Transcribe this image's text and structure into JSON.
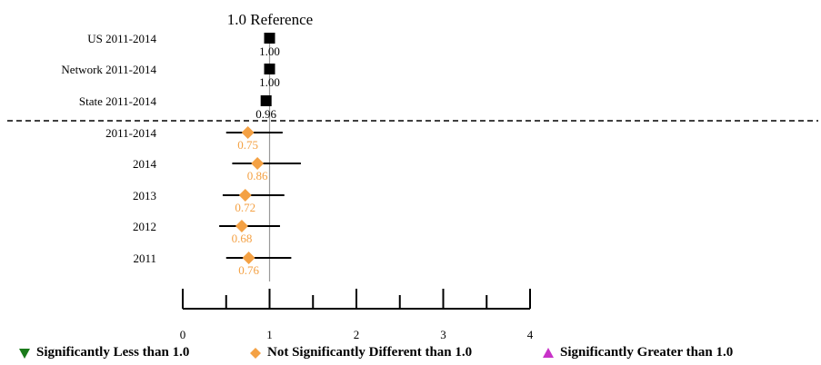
{
  "chart_data": {
    "type": "forest",
    "title": "1.0 Reference",
    "reference_value": 1.0,
    "xlim": [
      0,
      4
    ],
    "x_ticks": [
      "0",
      "1",
      "2",
      "3",
      "4"
    ],
    "reference_rows": [
      {
        "label": "US 2011-2014",
        "value": 1.0,
        "value_label": "1.00"
      },
      {
        "label": "Network 2011-2014",
        "value": 1.0,
        "value_label": "1.00"
      },
      {
        "label": "State 2011-2014",
        "value": 0.96,
        "value_label": "0.96"
      }
    ],
    "rows": [
      {
        "label": "2011-2014",
        "value": 0.75,
        "value_label": "0.75",
        "ci": [
          0.5,
          1.15
        ],
        "status": "not_significant"
      },
      {
        "label": "2014",
        "value": 0.86,
        "value_label": "0.86",
        "ci": [
          0.57,
          1.36
        ],
        "status": "not_significant"
      },
      {
        "label": "2013",
        "value": 0.72,
        "value_label": "0.72",
        "ci": [
          0.46,
          1.17
        ],
        "status": "not_significant"
      },
      {
        "label": "2012",
        "value": 0.68,
        "value_label": "0.68",
        "ci": [
          0.42,
          1.12
        ],
        "status": "not_significant"
      },
      {
        "label": "2011",
        "value": 0.76,
        "value_label": "0.76",
        "ci": [
          0.5,
          1.25
        ],
        "status": "not_significant"
      }
    ],
    "legend": [
      {
        "key": "less",
        "label": "Significantly Less than 1.0",
        "color": "#1a7a1a",
        "shape": "triangle-down"
      },
      {
        "key": "not_significant",
        "label": "Not Significantly Different than 1.0",
        "color": "#f4a144",
        "shape": "diamond"
      },
      {
        "key": "greater",
        "label": "Significantly Greater than 1.0",
        "color": "#c832c8",
        "shape": "triangle-up"
      }
    ],
    "colors": {
      "reference_marker": "#000000",
      "not_significant": "#f4a144",
      "reference_line": "#999999"
    }
  }
}
